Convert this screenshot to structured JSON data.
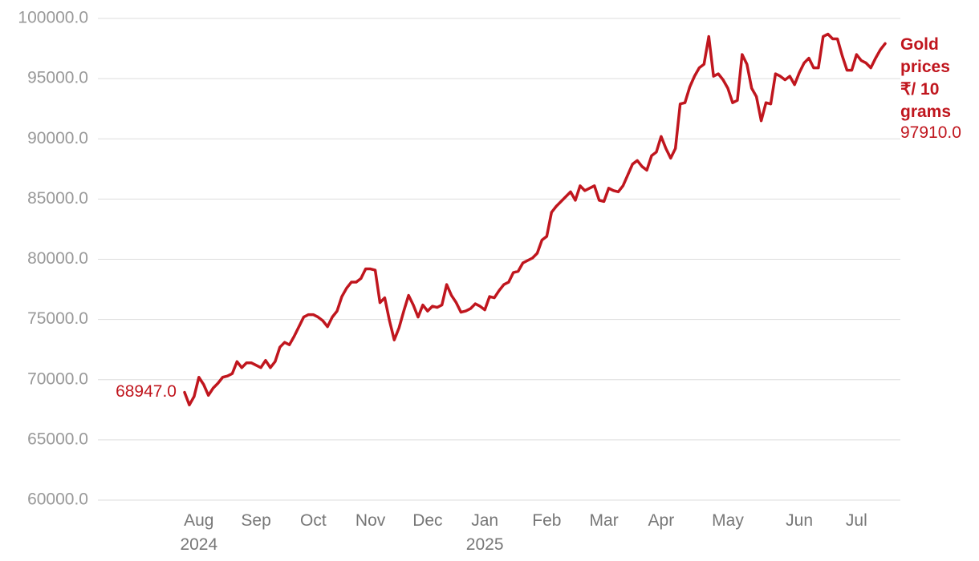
{
  "chart_data": {
    "type": "line",
    "categories": [
      null,
      null,
      null,
      "Aug\n2024",
      null,
      null,
      null,
      null,
      null,
      null,
      null,
      null,
      null,
      null,
      null,
      "Sep",
      null,
      null,
      null,
      null,
      null,
      null,
      null,
      null,
      null,
      null,
      null,
      "Oct",
      null,
      null,
      null,
      null,
      null,
      null,
      null,
      null,
      null,
      null,
      null,
      "Nov",
      null,
      null,
      null,
      null,
      null,
      null,
      null,
      null,
      null,
      null,
      null,
      "Dec",
      null,
      null,
      null,
      null,
      null,
      null,
      null,
      null,
      null,
      null,
      null,
      "Jan\n2025",
      null,
      null,
      null,
      null,
      null,
      null,
      null,
      null,
      null,
      null,
      null,
      null,
      "Feb",
      null,
      null,
      null,
      null,
      null,
      null,
      null,
      null,
      null,
      null,
      null,
      "Mar",
      null,
      null,
      null,
      null,
      null,
      null,
      null,
      null,
      null,
      null,
      null,
      "Apr",
      null,
      null,
      null,
      null,
      null,
      null,
      null,
      null,
      null,
      null,
      null,
      null,
      null,
      "May",
      null,
      null,
      null,
      null,
      null,
      null,
      null,
      null,
      null,
      null,
      null,
      null,
      null,
      null,
      "Jun",
      null,
      null,
      null,
      null,
      null,
      null,
      null,
      null,
      null,
      null,
      null,
      "Jul",
      null,
      null,
      null,
      null,
      null,
      null
    ],
    "series": [
      {
        "name": "Gold prices ₹/ 10 grams",
        "color": "#c0161e",
        "values": [
          68947,
          67900,
          68600,
          70200,
          69600,
          68700,
          69300,
          69700,
          70200,
          70300,
          70500,
          71500,
          71000,
          71400,
          71400,
          71200,
          71000,
          71600,
          71000,
          71500,
          72700,
          73100,
          72900,
          73600,
          74400,
          75200,
          75400,
          75400,
          75200,
          74900,
          74400,
          75200,
          75700,
          76900,
          77600,
          78100,
          78100,
          78400,
          79200,
          79200,
          79100,
          76400,
          76800,
          74900,
          73300,
          74300,
          75700,
          77000,
          76200,
          75200,
          76200,
          75700,
          76100,
          76000,
          76200,
          77900,
          77000,
          76400,
          75600,
          75700,
          75900,
          76300,
          76100,
          75800,
          76900,
          76800,
          77400,
          77900,
          78100,
          78900,
          79000,
          79700,
          79900,
          80100,
          80500,
          81600,
          81900,
          83900,
          84400,
          84800,
          85200,
          85600,
          84900,
          86100,
          85700,
          85900,
          86100,
          84900,
          84800,
          85900,
          85700,
          85600,
          86100,
          87000,
          87900,
          88200,
          87700,
          87400,
          88600,
          88900,
          90200,
          89200,
          88400,
          89200,
          92900,
          93000,
          94300,
          95200,
          95900,
          96200,
          98500,
          95200,
          95400,
          94900,
          94200,
          93000,
          93200,
          97000,
          96200,
          94200,
          93500,
          91500,
          93000,
          92900,
          95400,
          95200,
          94900,
          95200,
          94500,
          95500,
          96300,
          96700,
          95900,
          95900,
          98500,
          98700,
          98300,
          98300,
          96900,
          95700,
          95700,
          97000,
          96500,
          96300,
          95900,
          96700,
          97400,
          97910
        ],
        "value_labels": [
          "68947.0",
          null,
          null,
          null,
          null,
          null,
          null,
          null,
          null,
          null,
          null,
          null,
          null,
          null,
          null,
          null,
          null,
          null,
          null,
          null,
          null,
          null,
          null,
          null,
          null,
          null,
          null,
          null,
          null,
          null,
          null,
          null,
          null,
          null,
          null,
          null,
          null,
          null,
          null,
          null,
          null,
          null,
          null,
          null,
          null,
          null,
          null,
          null,
          null,
          null,
          null,
          null,
          null,
          null,
          null,
          null,
          null,
          null,
          null,
          null,
          null,
          null,
          null,
          null,
          null,
          null,
          null,
          null,
          null,
          null,
          null,
          null,
          null,
          null,
          null,
          null,
          null,
          null,
          null,
          null,
          null,
          null,
          null,
          null,
          null,
          null,
          null,
          null,
          null,
          null,
          null,
          null,
          null,
          null,
          null,
          null,
          null,
          null,
          null,
          null,
          null,
          null,
          null,
          null,
          null,
          null,
          null,
          null,
          null,
          null,
          null,
          null,
          null,
          null,
          null,
          null,
          null,
          null,
          null,
          null,
          null,
          null,
          null,
          null,
          null,
          null,
          null,
          null,
          null,
          null,
          null,
          null,
          null,
          null,
          null,
          null,
          null,
          null,
          null,
          null,
          null,
          null,
          null,
          null,
          null,
          null,
          null,
          "97910.0"
        ]
      }
    ],
    "ylim": [
      60000,
      100000
    ],
    "yticks": [
      {
        "value": 60000,
        "label": "60000.0"
      },
      {
        "value": 65000,
        "label": "65000.0"
      },
      {
        "value": 70000,
        "label": "70000.0"
      },
      {
        "value": 75000,
        "label": "75000.0"
      },
      {
        "value": 80000,
        "label": "80000.0"
      },
      {
        "value": 85000,
        "label": "85000.0"
      },
      {
        "value": 90000,
        "label": "90000.0"
      },
      {
        "value": 95000,
        "label": "95000.0"
      },
      {
        "value": 100000,
        "label": "100000.0"
      }
    ],
    "grid": true
  }
}
